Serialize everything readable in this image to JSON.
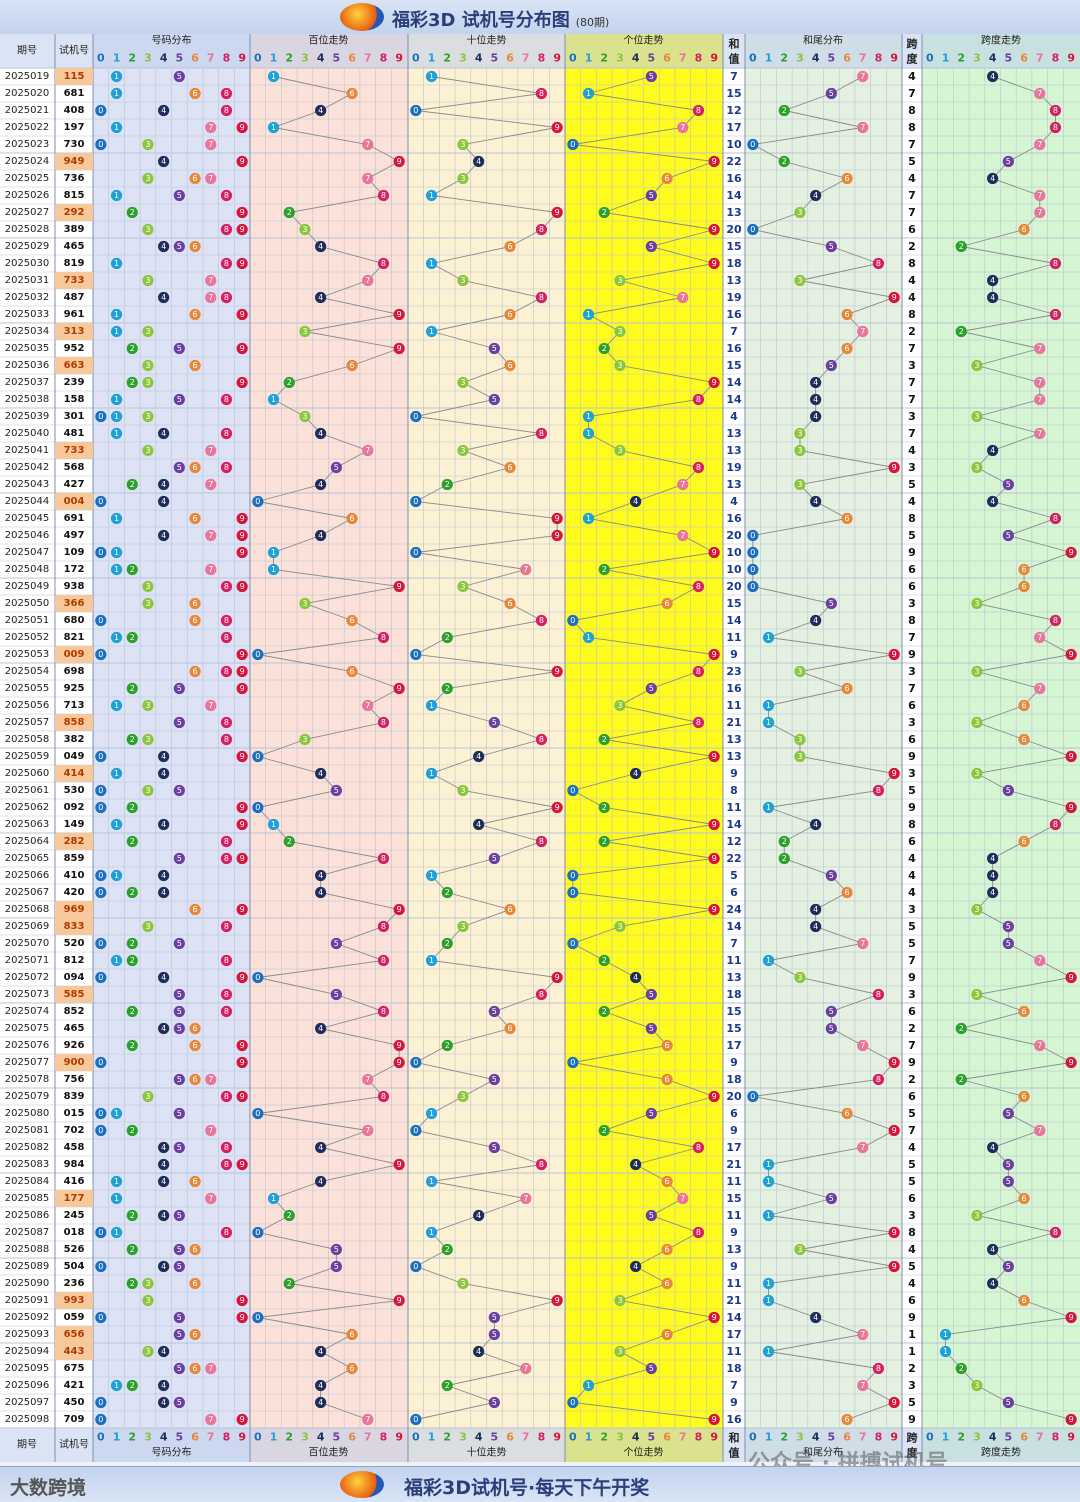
{
  "header": {
    "title": "福彩3D 试机号分布图",
    "subtitle": "(80期)"
  },
  "footer": {
    "brand": "大数跨境",
    "slogan": "福彩3D试机号·每天下午开奖",
    "watermark": "公众号 · 拼搏试机号"
  },
  "columns": {
    "issue": "期号",
    "number": "试机号",
    "sections": [
      "号码分布",
      "百位走势",
      "十位走势",
      "个位走势"
    ],
    "sum": "和值",
    "sum_tail": "和尾分布",
    "span": "跨度",
    "span_trend": "跨度走势",
    "digits": [
      "0",
      "1",
      "2",
      "3",
      "4",
      "5",
      "6",
      "7",
      "8",
      "9"
    ]
  },
  "colors": {
    "bg_dist": "#dde3f5",
    "bg_hundreds": "#fbe1d8",
    "bg_tens": "#fdf1d3",
    "bg_units": "#fffb1c",
    "bg_tail": "#e4f0e0",
    "bg_span": "#d6f5d2",
    "highlight_issue": "#f7c99a"
  },
  "chart_data": {
    "type": "table",
    "title": "福彩3D 试机号分布图",
    "period_count": 80,
    "rows": [
      {
        "issue": "2025019",
        "number": "115"
      },
      {
        "issue": "2025020",
        "number": "681"
      },
      {
        "issue": "2025021",
        "number": "408"
      },
      {
        "issue": "2025022",
        "number": "197"
      },
      {
        "issue": "2025023",
        "number": "730"
      },
      {
        "issue": "2025024",
        "number": "949"
      },
      {
        "issue": "2025025",
        "number": "736"
      },
      {
        "issue": "2025026",
        "number": "815"
      },
      {
        "issue": "2025027",
        "number": "292"
      },
      {
        "issue": "2025028",
        "number": "389"
      },
      {
        "issue": "2025029",
        "number": "465"
      },
      {
        "issue": "2025030",
        "number": "819"
      },
      {
        "issue": "2025031",
        "number": "733"
      },
      {
        "issue": "2025032",
        "number": "487"
      },
      {
        "issue": "2025033",
        "number": "961"
      },
      {
        "issue": "2025034",
        "number": "313"
      },
      {
        "issue": "2025035",
        "number": "952"
      },
      {
        "issue": "2025036",
        "number": "663"
      },
      {
        "issue": "2025037",
        "number": "239"
      },
      {
        "issue": "2025038",
        "number": "158"
      },
      {
        "issue": "2025039",
        "number": "301"
      },
      {
        "issue": "2025040",
        "number": "481"
      },
      {
        "issue": "2025041",
        "number": "733"
      },
      {
        "issue": "2025042",
        "number": "568"
      },
      {
        "issue": "2025043",
        "number": "427"
      },
      {
        "issue": "2025044",
        "number": "004"
      },
      {
        "issue": "2025045",
        "number": "691"
      },
      {
        "issue": "2025046",
        "number": "497"
      },
      {
        "issue": "2025047",
        "number": "109"
      },
      {
        "issue": "2025048",
        "number": "172"
      },
      {
        "issue": "2025049",
        "number": "938"
      },
      {
        "issue": "2025050",
        "number": "366"
      },
      {
        "issue": "2025051",
        "number": "680"
      },
      {
        "issue": "2025052",
        "number": "821"
      },
      {
        "issue": "2025053",
        "number": "009"
      },
      {
        "issue": "2025054",
        "number": "698"
      },
      {
        "issue": "2025055",
        "number": "925"
      },
      {
        "issue": "2025056",
        "number": "713"
      },
      {
        "issue": "2025057",
        "number": "858"
      },
      {
        "issue": "2025058",
        "number": "382"
      },
      {
        "issue": "2025059",
        "number": "049"
      },
      {
        "issue": "2025060",
        "number": "414"
      },
      {
        "issue": "2025061",
        "number": "530"
      },
      {
        "issue": "2025062",
        "number": "092"
      },
      {
        "issue": "2025063",
        "number": "149"
      },
      {
        "issue": "2025064",
        "number": "282"
      },
      {
        "issue": "2025065",
        "number": "859"
      },
      {
        "issue": "2025066",
        "number": "410"
      },
      {
        "issue": "2025067",
        "number": "420"
      },
      {
        "issue": "2025068",
        "number": "969"
      },
      {
        "issue": "2025069",
        "number": "833"
      },
      {
        "issue": "2025070",
        "number": "520"
      },
      {
        "issue": "2025071",
        "number": "812"
      },
      {
        "issue": "2025072",
        "number": "094"
      },
      {
        "issue": "2025073",
        "number": "585"
      },
      {
        "issue": "2025074",
        "number": "852"
      },
      {
        "issue": "2025075",
        "number": "465"
      },
      {
        "issue": "2025076",
        "number": "926"
      },
      {
        "issue": "2025077",
        "number": "900"
      },
      {
        "issue": "2025078",
        "number": "756"
      },
      {
        "issue": "2025079",
        "number": "839"
      },
      {
        "issue": "2025080",
        "number": "015"
      },
      {
        "issue": "2025081",
        "number": "702"
      },
      {
        "issue": "2025082",
        "number": "458"
      },
      {
        "issue": "2025083",
        "number": "984"
      },
      {
        "issue": "2025084",
        "number": "416"
      },
      {
        "issue": "2025085",
        "number": "177"
      },
      {
        "issue": "2025086",
        "number": "245"
      },
      {
        "issue": "2025087",
        "number": "018"
      },
      {
        "issue": "2025088",
        "number": "526"
      },
      {
        "issue": "2025089",
        "number": "504"
      },
      {
        "issue": "2025090",
        "number": "236"
      },
      {
        "issue": "2025091",
        "number": "993"
      },
      {
        "issue": "2025092",
        "number": "059"
      },
      {
        "issue": "2025093",
        "number": "656"
      },
      {
        "issue": "2025094",
        "number": "443"
      },
      {
        "issue": "2025095",
        "number": "675"
      },
      {
        "issue": "2025096",
        "number": "421"
      },
      {
        "issue": "2025097",
        "number": "450"
      },
      {
        "issue": "2025098",
        "number": "709"
      }
    ]
  }
}
